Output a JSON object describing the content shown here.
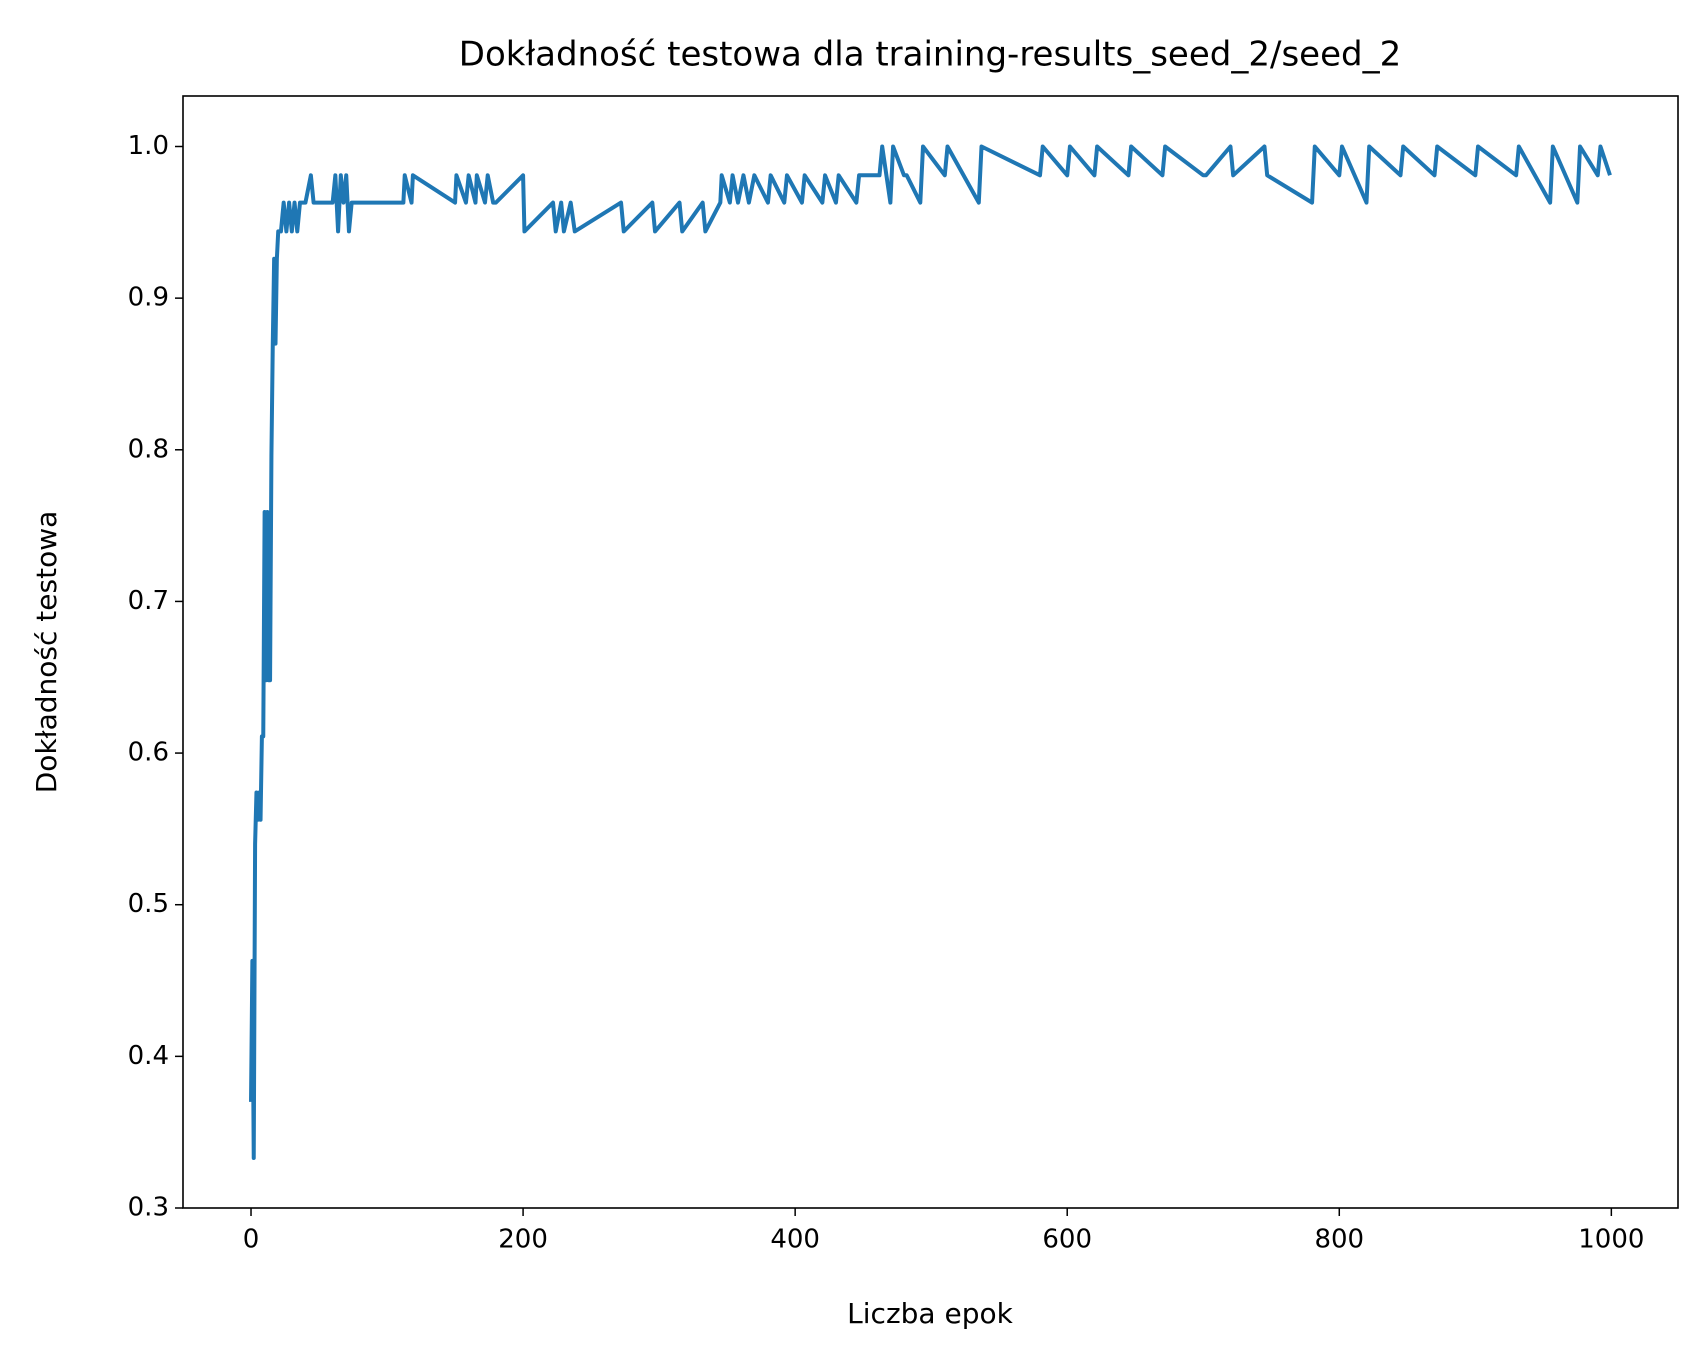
{
  "chart_data": {
    "type": "line",
    "title": "Dokładność testowa dla training-results_seed_2/seed_2",
    "x_label": "Liczba epok",
    "y_label": "Dokładność testowa",
    "xlim": [
      -50,
      1049
    ],
    "ylim": [
      0.3,
      1.0333
    ],
    "xticks": [
      0,
      200,
      400,
      600,
      800,
      1000
    ],
    "yticks": [
      {
        "value": 0.3,
        "label": "0.3"
      },
      {
        "value": 0.4,
        "label": "0.4"
      },
      {
        "value": 0.5,
        "label": "0.5"
      },
      {
        "value": 0.6,
        "label": "0.6"
      },
      {
        "value": 0.7,
        "label": "0.7"
      },
      {
        "value": 0.8,
        "label": "0.8"
      },
      {
        "value": 0.9,
        "label": "0.9"
      },
      {
        "value": 1.0,
        "label": "1.0"
      }
    ],
    "series": [
      {
        "color": "#1f77b4",
        "x": [
          0,
          1,
          2,
          3,
          4,
          5,
          6,
          7,
          8,
          9,
          10,
          11,
          12,
          13,
          14,
          15,
          16,
          17,
          18,
          19,
          20,
          22,
          24,
          26,
          28,
          30,
          32,
          34,
          36,
          40,
          44,
          46,
          60,
          62,
          64,
          66,
          68,
          70,
          72,
          74,
          112,
          113,
          118,
          119,
          150,
          151,
          158,
          160,
          165,
          166,
          172,
          174,
          178,
          180,
          200,
          201,
          222,
          224,
          228,
          230,
          235,
          238,
          272,
          274,
          295,
          297,
          315,
          317,
          332,
          334,
          345,
          346,
          352,
          354,
          358,
          362,
          366,
          370,
          380,
          382,
          392,
          394,
          405,
          407,
          420,
          422,
          430,
          432,
          445,
          447,
          462,
          464,
          470,
          472,
          480,
          482,
          492,
          494,
          510,
          512,
          535,
          537,
          580,
          582,
          600,
          602,
          620,
          622,
          645,
          647,
          670,
          672,
          700,
          702,
          720,
          722,
          745,
          747,
          780,
          782,
          800,
          802,
          820,
          822,
          845,
          847,
          870,
          872,
          900,
          902,
          930,
          932,
          955,
          957,
          975,
          977,
          990,
          992,
          999
        ],
        "values": [
          0.37,
          0.463,
          0.333,
          0.54,
          0.574,
          0.556,
          0.574,
          0.556,
          0.611,
          0.611,
          0.759,
          0.648,
          0.759,
          0.648,
          0.648,
          0.796,
          0.87,
          0.926,
          0.87,
          0.926,
          0.944,
          0.944,
          0.963,
          0.944,
          0.963,
          0.944,
          0.963,
          0.944,
          0.963,
          0.963,
          0.981,
          0.963,
          0.963,
          0.981,
          0.944,
          0.981,
          0.963,
          0.981,
          0.944,
          0.963,
          0.963,
          0.981,
          0.963,
          0.981,
          0.963,
          0.981,
          0.963,
          0.981,
          0.963,
          0.981,
          0.963,
          0.981,
          0.963,
          0.963,
          0.981,
          0.944,
          0.963,
          0.944,
          0.963,
          0.944,
          0.963,
          0.944,
          0.963,
          0.944,
          0.963,
          0.944,
          0.963,
          0.944,
          0.963,
          0.944,
          0.963,
          0.981,
          0.963,
          0.981,
          0.963,
          0.981,
          0.963,
          0.981,
          0.963,
          0.981,
          0.963,
          0.981,
          0.963,
          0.981,
          0.963,
          0.981,
          0.963,
          0.981,
          0.963,
          0.981,
          0.981,
          1.0,
          0.963,
          1.0,
          0.981,
          0.981,
          0.963,
          1.0,
          0.981,
          1.0,
          0.963,
          1.0,
          0.981,
          1.0,
          0.981,
          1.0,
          0.981,
          1.0,
          0.981,
          1.0,
          0.981,
          1.0,
          0.981,
          0.981,
          1.0,
          0.981,
          1.0,
          0.981,
          0.963,
          1.0,
          0.981,
          1.0,
          0.963,
          1.0,
          0.981,
          1.0,
          0.981,
          1.0,
          0.981,
          1.0,
          0.981,
          1.0,
          0.963,
          1.0,
          0.963,
          1.0,
          0.981,
          1.0,
          0.981
        ]
      }
    ]
  }
}
